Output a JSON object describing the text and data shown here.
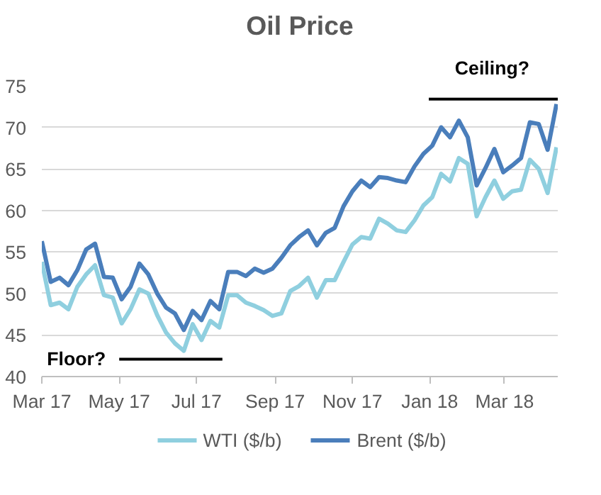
{
  "chart_data": {
    "type": "line",
    "title": "Oil Price",
    "x": [
      "2017-03-01",
      "2017-03-08",
      "2017-03-15",
      "2017-03-22",
      "2017-03-29",
      "2017-04-05",
      "2017-04-12",
      "2017-04-19",
      "2017-04-26",
      "2017-05-03",
      "2017-05-10",
      "2017-05-17",
      "2017-05-24",
      "2017-05-31",
      "2017-06-07",
      "2017-06-14",
      "2017-06-21",
      "2017-06-28",
      "2017-07-05",
      "2017-07-12",
      "2017-07-19",
      "2017-07-26",
      "2017-08-02",
      "2017-08-09",
      "2017-08-16",
      "2017-08-23",
      "2017-08-30",
      "2017-09-06",
      "2017-09-13",
      "2017-09-20",
      "2017-09-27",
      "2017-10-04",
      "2017-10-11",
      "2017-10-18",
      "2017-10-25",
      "2017-11-01",
      "2017-11-08",
      "2017-11-15",
      "2017-11-22",
      "2017-11-29",
      "2017-12-06",
      "2017-12-13",
      "2017-12-20",
      "2017-12-27",
      "2018-01-03",
      "2018-01-10",
      "2018-01-17",
      "2018-01-24",
      "2018-01-31",
      "2018-02-07",
      "2018-02-14",
      "2018-02-21",
      "2018-02-28",
      "2018-03-07",
      "2018-03-14",
      "2018-03-21",
      "2018-03-28",
      "2018-04-04",
      "2018-04-11"
    ],
    "series": [
      {
        "name": "WTI ($/b)",
        "color": "#8fcfdf",
        "values": [
          53.8,
          48.6,
          48.9,
          48.1,
          50.8,
          52.3,
          53.4,
          49.8,
          49.5,
          46.4,
          48.1,
          50.5,
          50.0,
          47.4,
          45.3,
          44.0,
          43.1,
          46.3,
          44.4,
          46.7,
          45.9,
          49.8,
          49.8,
          48.9,
          48.5,
          48.0,
          47.3,
          47.6,
          50.3,
          50.9,
          51.9,
          49.5,
          51.6,
          51.6,
          53.8,
          55.9,
          56.8,
          56.6,
          59.0,
          58.4,
          57.6,
          57.4,
          58.8,
          60.6,
          61.6,
          64.4,
          63.5,
          66.3,
          65.6,
          59.3,
          61.6,
          63.6,
          61.4,
          62.3,
          62.5,
          66.1,
          65.0,
          62.1,
          67.6
        ]
      },
      {
        "name": "Brent ($/b)",
        "color": "#4a7ebb",
        "values": [
          56.3,
          51.4,
          51.9,
          51.0,
          52.8,
          55.3,
          56.0,
          52.0,
          51.9,
          49.3,
          50.8,
          53.6,
          52.3,
          50.0,
          48.3,
          47.6,
          45.6,
          47.9,
          46.8,
          49.1,
          48.1,
          52.6,
          52.6,
          52.1,
          53.0,
          52.5,
          53.0,
          54.3,
          55.8,
          56.8,
          57.6,
          55.8,
          57.3,
          57.9,
          60.5,
          62.3,
          63.6,
          62.8,
          64.0,
          63.9,
          63.6,
          63.4,
          65.3,
          66.8,
          67.8,
          70.0,
          68.8,
          70.8,
          68.8,
          63.0,
          65.1,
          67.4,
          64.6,
          65.4,
          66.3,
          70.6,
          70.4,
          67.3,
          72.8
        ]
      }
    ],
    "ylim": [
      40,
      75
    ],
    "yticks": [
      40,
      45,
      50,
      55,
      60,
      65,
      70,
      75
    ],
    "xlim": [
      "2017-03-01",
      "2018-04-12"
    ],
    "xticks": [
      {
        "value": "2017-03-01",
        "label": "Mar 17"
      },
      {
        "value": "2017-05-01",
        "label": "May 17"
      },
      {
        "value": "2017-07-01",
        "label": "Jul 17"
      },
      {
        "value": "2017-09-01",
        "label": "Sep 17"
      },
      {
        "value": "2017-11-01",
        "label": "Nov 17"
      },
      {
        "value": "2018-01-01",
        "label": "Jan 18"
      },
      {
        "value": "2018-03-01",
        "label": "Mar 18"
      }
    ],
    "ref_lines": [
      {
        "axis": "y",
        "value": 42.1,
        "label": "Floor?",
        "color": "#000000"
      },
      {
        "axis": "y",
        "value": 73.4,
        "label": "Ceiling?",
        "color": "#000000"
      }
    ],
    "grid": "y",
    "legend": "bottom",
    "marker": "none",
    "line_style": "solid"
  }
}
